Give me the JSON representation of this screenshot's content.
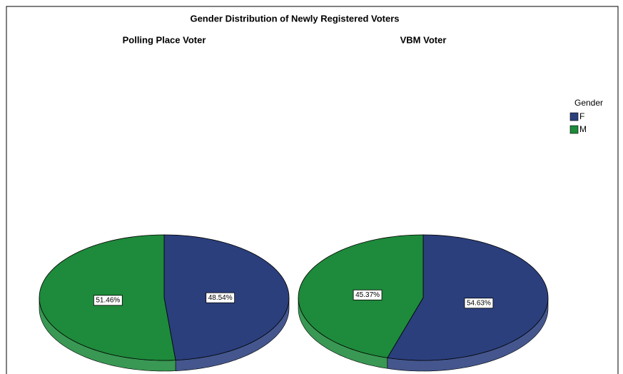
{
  "title": "Gender Distribution of Newly Registered Voters",
  "legend": {
    "title": "Gender"
  },
  "chart_data": [
    {
      "type": "pie",
      "title": "Polling Place Voter",
      "categories": [
        "F",
        "M"
      ],
      "values": [
        48.54,
        51.46
      ],
      "value_labels": [
        "48.54%",
        "51.46%"
      ],
      "colors": [
        "#2b3f7d",
        "#1e8a3b"
      ]
    },
    {
      "type": "pie",
      "title": "VBM Voter",
      "categories": [
        "F",
        "M"
      ],
      "values": [
        54.63,
        45.37
      ],
      "value_labels": [
        "54.63%",
        "45.37%"
      ],
      "colors": [
        "#2b3f7d",
        "#1e8a3b"
      ]
    }
  ]
}
